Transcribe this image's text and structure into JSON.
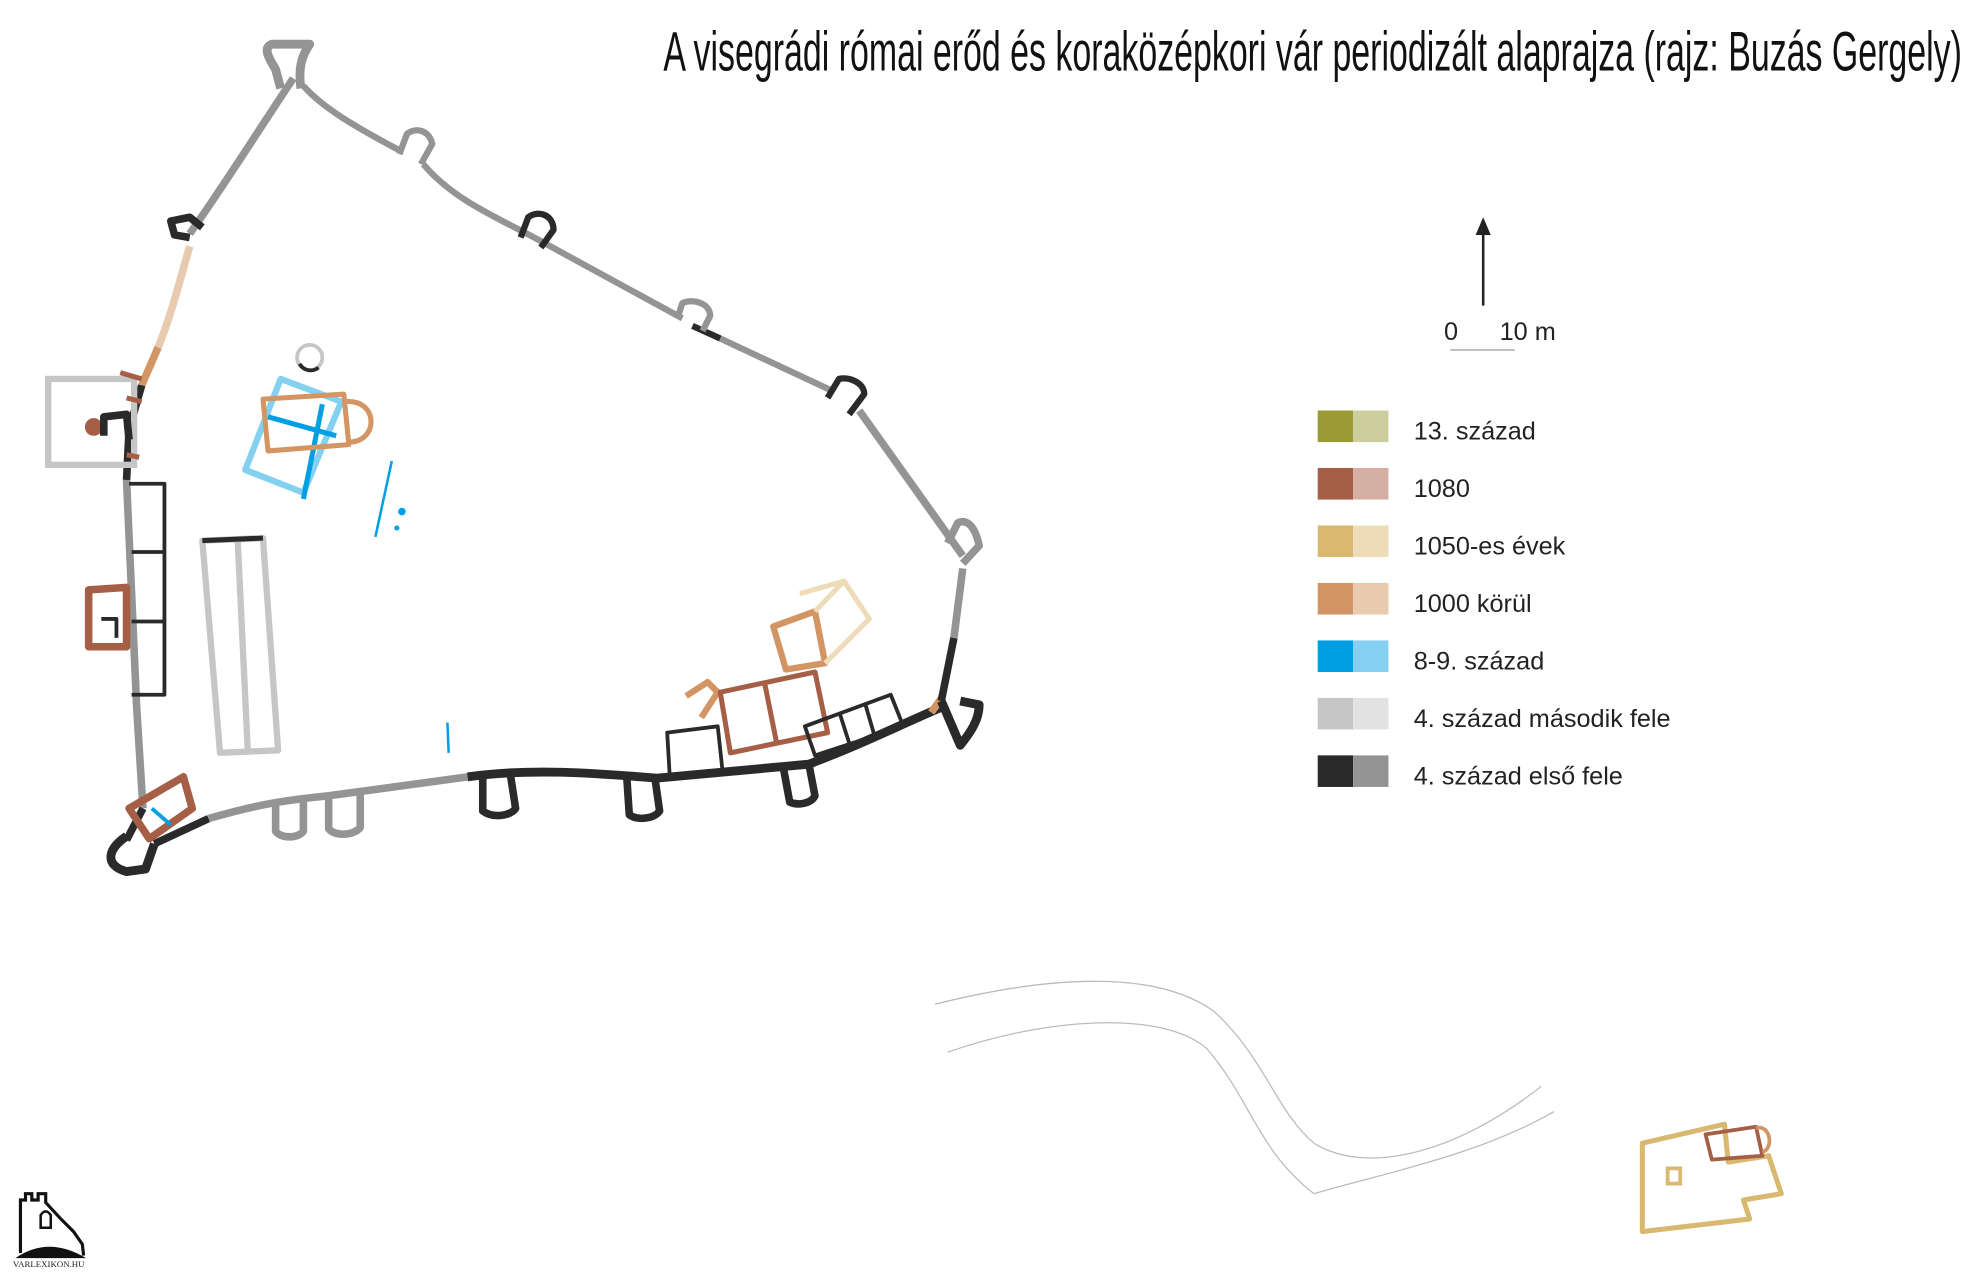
{
  "title": "A visegrádi római erőd és koraközépkori vár periodizált alaprajza (rajz: Buzás Gergely)",
  "north_arrow": "north-arrow-icon",
  "scale_bar": {
    "start_label": "0",
    "end_label": "10 m"
  },
  "legend": [
    {
      "label": "13. század",
      "dark": "#9a9a36",
      "light": "#cdce9e"
    },
    {
      "label": "1080",
      "dark": "#a65f47",
      "light": "#d5b0a2"
    },
    {
      "label": "1050-es évek",
      "dark": "#d9b870",
      "light": "#eddcb7"
    },
    {
      "label": "1000 körül",
      "dark": "#d39563",
      "light": "#e8caae"
    },
    {
      "label": "8-9. század",
      "dark": "#009fe3",
      "light": "#84d0f0"
    },
    {
      "label": "4. század második fele",
      "dark": "#c6c6c6",
      "light": "#e2e2e2"
    },
    {
      "label": "4. század első fele",
      "dark": "#2a2a2a",
      "light": "#949494"
    }
  ],
  "logo": {
    "text": "VARLEXIKON.HU"
  }
}
